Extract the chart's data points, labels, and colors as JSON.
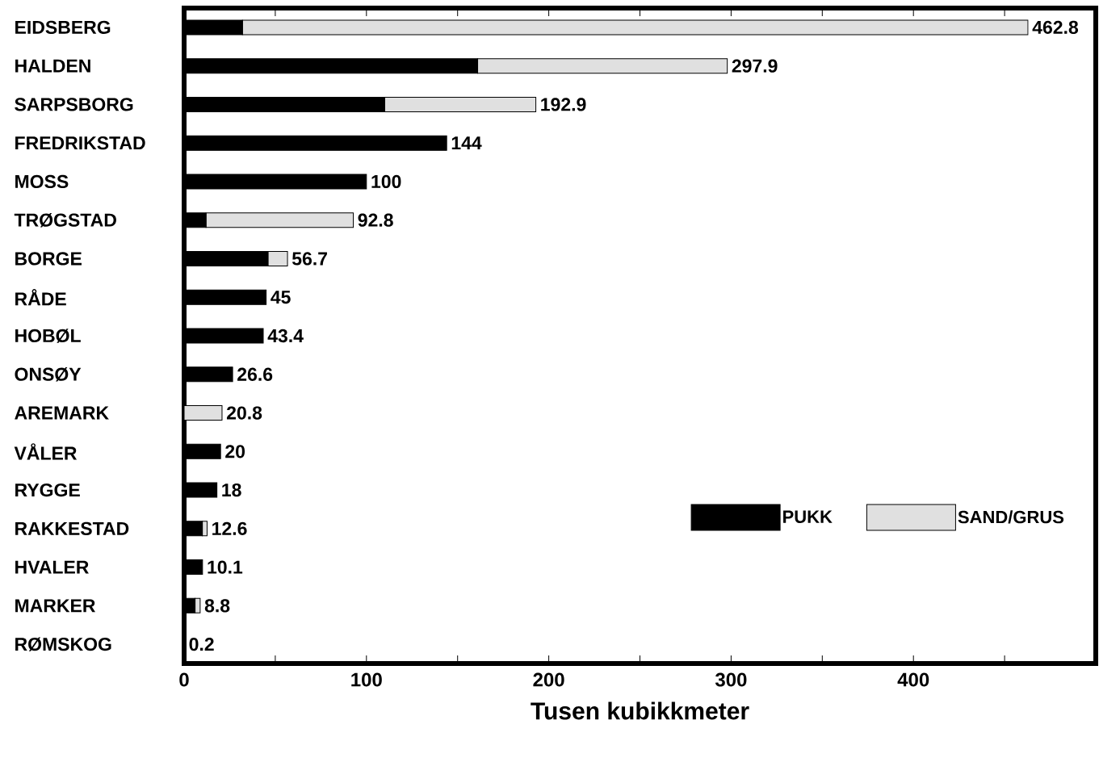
{
  "chart_data": {
    "type": "bar",
    "orientation": "horizontal",
    "stacked": true,
    "xlabel": "Tusen kubikkmeter",
    "categories": [
      "EIDSBERG",
      "HALDEN",
      "SARPSBORG",
      "FREDRIKSTAD",
      "MOSS",
      "TRØGSTAD",
      "BORGE",
      "RÅDE",
      "HOBØL",
      "ONSØY",
      "AREMARK",
      "VÅLER",
      "RYGGE",
      "RAKKESTAD",
      "HVALER",
      "MARKER",
      "RØMSKOG"
    ],
    "series": [
      {
        "name": "PUKK",
        "color": "#000000",
        "values": [
          32,
          161,
          110,
          144,
          100,
          12,
          46,
          45,
          43.4,
          26.6,
          0,
          20,
          18,
          10,
          10.1,
          6,
          0.2
        ]
      },
      {
        "name": "SAND/GRUS",
        "color": "#e0e0e0",
        "values": [
          430.8,
          136.9,
          82.9,
          0,
          0,
          80.8,
          10.7,
          0,
          0,
          0,
          20.8,
          0,
          0,
          2.6,
          0,
          2.8,
          0
        ]
      }
    ],
    "totals": [
      "462.8",
      "297.9",
      "192.9",
      "144",
      "100",
      "92.8",
      "56.7",
      "45",
      "43.4",
      "26.6",
      "20.8",
      "20",
      "18",
      "12.6",
      "10.1",
      "8.8",
      "0.2"
    ],
    "xlim": [
      0,
      500
    ],
    "xticks": [
      0,
      {
        "value": 50,
        "label": null
      },
      100,
      {
        "value": 150,
        "label": null
      },
      200,
      {
        "value": 250,
        "label": null
      },
      300,
      {
        "value": 350,
        "label": null
      },
      400,
      {
        "value": 450,
        "label": null
      }
    ],
    "grid": false,
    "legend": "bottom right"
  }
}
